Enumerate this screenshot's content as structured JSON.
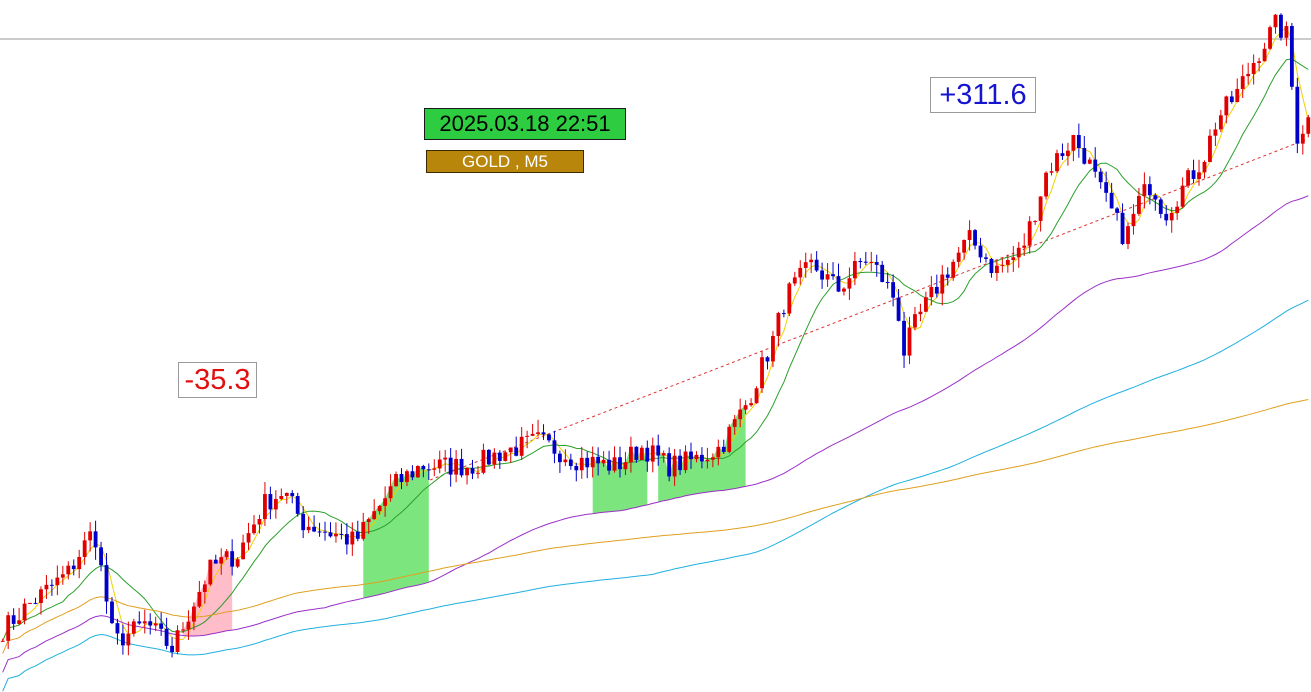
{
  "chart": {
    "datetime": "2025.03.18  22:51",
    "symbol": "GOLD , M5",
    "gain_label": "+311.6",
    "loss_label": "-35.3"
  },
  "colors": {
    "up": "#e00000",
    "down": "#0000c8",
    "ma_fast": "#f0d000",
    "ma_mid": "#2aa02a",
    "ma_slow": "#9b30c8",
    "ma_long": "#20b0e0",
    "ma_longest": "#e0a020",
    "fill": "#66e066",
    "fill_alt": "#ffb0c0",
    "date_tag": "#2ecc40",
    "symbol_tag": "#b8860b",
    "gain": "#1515d0",
    "loss": "#e01010"
  },
  "chart_data": {
    "type": "candlestick",
    "symbol": "GOLD",
    "timeframe": "M5",
    "timestamp": "2025.03.18 22:51",
    "annotations": [
      "+311.6",
      "-35.3"
    ],
    "indicators": [
      "moving average fast",
      "moving average mid",
      "moving average slow",
      "moving average long",
      "moving average longest"
    ],
    "close_path": [
      [
        0,
        0.04
      ],
      [
        0.02,
        0.08
      ],
      [
        0.05,
        0.13
      ],
      [
        0.07,
        0.2
      ],
      [
        0.085,
        0.02
      ],
      [
        0.11,
        0.05
      ],
      [
        0.13,
        0.01
      ],
      [
        0.15,
        0.1
      ],
      [
        0.16,
        0.14
      ],
      [
        0.18,
        0.16
      ],
      [
        0.2,
        0.24
      ],
      [
        0.215,
        0.26
      ],
      [
        0.23,
        0.21
      ],
      [
        0.27,
        0.18
      ],
      [
        0.3,
        0.27
      ],
      [
        0.32,
        0.3
      ],
      [
        0.36,
        0.3
      ],
      [
        0.38,
        0.32
      ],
      [
        0.41,
        0.34
      ],
      [
        0.44,
        0.31
      ],
      [
        0.47,
        0.3
      ],
      [
        0.49,
        0.33
      ],
      [
        0.51,
        0.3
      ],
      [
        0.53,
        0.31
      ],
      [
        0.55,
        0.33
      ],
      [
        0.57,
        0.4
      ],
      [
        0.59,
        0.5
      ],
      [
        0.6,
        0.57
      ],
      [
        0.62,
        0.62
      ],
      [
        0.64,
        0.58
      ],
      [
        0.66,
        0.63
      ],
      [
        0.67,
        0.61
      ],
      [
        0.685,
        0.56
      ],
      [
        0.69,
        0.48
      ],
      [
        0.7,
        0.53
      ],
      [
        0.72,
        0.6
      ],
      [
        0.74,
        0.66
      ],
      [
        0.75,
        0.64
      ],
      [
        0.76,
        0.61
      ],
      [
        0.78,
        0.64
      ],
      [
        0.79,
        0.7
      ],
      [
        0.8,
        0.77
      ],
      [
        0.82,
        0.82
      ],
      [
        0.83,
        0.79
      ],
      [
        0.84,
        0.74
      ],
      [
        0.85,
        0.7
      ],
      [
        0.86,
        0.66
      ],
      [
        0.87,
        0.72
      ],
      [
        0.88,
        0.75
      ],
      [
        0.89,
        0.7
      ],
      [
        0.9,
        0.73
      ],
      [
        0.92,
        0.79
      ],
      [
        0.93,
        0.85
      ],
      [
        0.945,
        0.89
      ],
      [
        0.96,
        0.95
      ],
      [
        0.975,
        1.0
      ],
      [
        0.985,
        0.98
      ],
      [
        0.99,
        0.82
      ],
      [
        1.0,
        0.85
      ]
    ]
  }
}
